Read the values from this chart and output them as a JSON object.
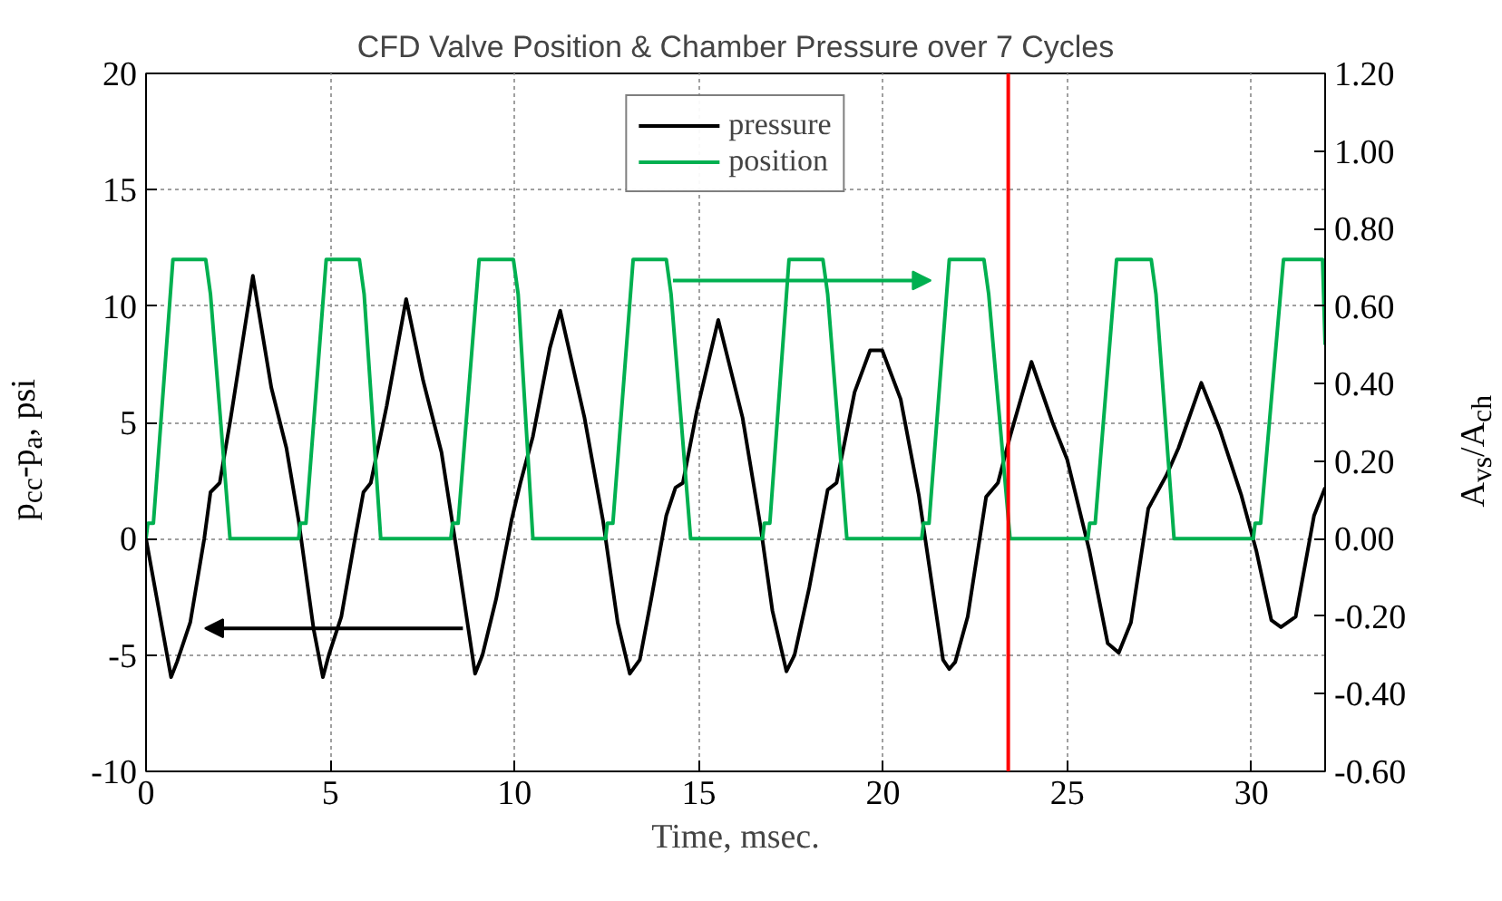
{
  "chart_data": {
    "type": "line",
    "title": "CFD Valve Position & Chamber Pressure over 7 Cycles",
    "xlabel": "Time, msec.",
    "ylabel": "p$_{cc}$-p$_{a}$, psi",
    "y2label": "A$_{vs}$/A$_{ch}$",
    "xlim": [
      0,
      32
    ],
    "xticks": [
      0,
      5,
      10,
      15,
      20,
      25,
      30
    ],
    "ylim": [
      -10,
      20
    ],
    "yticks": [
      -10,
      -5,
      0,
      5,
      10,
      15,
      20
    ],
    "y2lim": [
      -0.6,
      1.2
    ],
    "y2ticks": [
      {
        "value": -0.6,
        "label": "-0.60"
      },
      {
        "value": -0.4,
        "label": "-0.40"
      },
      {
        "value": -0.2,
        "label": "-0.20"
      },
      {
        "value": 0,
        "label": "0.00"
      },
      {
        "value": 0.2,
        "label": "0.20"
      },
      {
        "value": 0.4,
        "label": "0.40"
      },
      {
        "value": 0.6,
        "label": "0.60"
      },
      {
        "value": 0.8,
        "label": "0.80"
      },
      {
        "value": 1.0,
        "label": "1.00"
      },
      {
        "value": 1.2,
        "label": "1.20"
      }
    ],
    "grid": true,
    "legend": "top",
    "line_style": "solid",
    "ref_lines": [
      {
        "axis": "x",
        "value": 23.4,
        "color": "#ff0000"
      }
    ],
    "series": [
      {
        "name": "pressure",
        "color": "#000000",
        "x": [
          0,
          0.68,
          0.84,
          1.2,
          1.58,
          1.75,
          2.0,
          2.3,
          2.9,
          3.4,
          3.81,
          4.14,
          4.55,
          4.8,
          4.96,
          5.3,
          5.67,
          5.9,
          6.1,
          6.53,
          7.06,
          7.52,
          8.02,
          8.43,
          8.93,
          9.13,
          9.5,
          9.92,
          10.16,
          10.5,
          10.96,
          11.24,
          11.9,
          12.4,
          12.8,
          13.13,
          13.4,
          13.71,
          14.12,
          14.37,
          14.57,
          14.95,
          15.53,
          16.19,
          16.68,
          17.0,
          17.38,
          17.6,
          18.0,
          18.5,
          18.74,
          19.23,
          19.65,
          19.98,
          20.48,
          20.97,
          21.63,
          21.8,
          21.96,
          22.3,
          22.8,
          23.12,
          23.45,
          24.03,
          24.6,
          25.0,
          25.6,
          26.1,
          26.4,
          26.73,
          27.2,
          27.7,
          28.02,
          28.64,
          29.14,
          29.72,
          30.13,
          30.54,
          30.8,
          31.2,
          31.7,
          32.0
        ],
        "values": [
          0,
          -5.95,
          -5.3,
          -3.6,
          0,
          2.0,
          2.4,
          5.2,
          11.3,
          6.5,
          3.9,
          0.8,
          -3.9,
          -5.95,
          -5.0,
          -3.35,
          0,
          2.0,
          2.4,
          5.7,
          10.3,
          6.8,
          3.7,
          -0.5,
          -5.8,
          -5.0,
          -2.6,
          0.8,
          2.4,
          4.4,
          8.2,
          9.8,
          5.2,
          0.8,
          -3.6,
          -5.8,
          -5.2,
          -2.6,
          1.0,
          2.2,
          2.4,
          5.5,
          9.4,
          5.2,
          0.5,
          -3.1,
          -5.7,
          -5.0,
          -2.1,
          2.1,
          2.4,
          6.3,
          8.1,
          8.1,
          6.0,
          1.9,
          -5.2,
          -5.6,
          -5.3,
          -3.35,
          1.8,
          2.4,
          4.4,
          7.6,
          5.0,
          3.4,
          -0.5,
          -4.5,
          -4.9,
          -3.6,
          1.3,
          2.75,
          3.9,
          6.7,
          4.7,
          1.9,
          -0.5,
          -3.5,
          -3.8,
          -3.35,
          1.0,
          2.2
        ]
      },
      {
        "name": "position",
        "color": "#00b050",
        "axis": "y2",
        "x": [
          0,
          0.05,
          0.2,
          0.73,
          1.62,
          1.75,
          2.28,
          4.14,
          4.19,
          4.34,
          4.89,
          5.79,
          5.92,
          6.37,
          8.27,
          8.32,
          8.47,
          9.04,
          9.97,
          10.1,
          10.5,
          12.47,
          12.52,
          12.67,
          13.22,
          14.12,
          14.25,
          14.78,
          16.73,
          16.78,
          16.93,
          17.45,
          18.37,
          18.5,
          19.02,
          21.05,
          21.1,
          21.25,
          21.8,
          22.74,
          22.87,
          23.45,
          25.56,
          25.61,
          25.76,
          26.34,
          27.28,
          27.41,
          27.9,
          30.05,
          30.1,
          30.25,
          30.87,
          31.93,
          32.0
        ],
        "values": [
          0,
          0.04,
          0.04,
          0.72,
          0.72,
          0.63,
          0,
          0,
          0.04,
          0.04,
          0.72,
          0.72,
          0.63,
          0,
          0,
          0.04,
          0.04,
          0.72,
          0.72,
          0.63,
          0,
          0,
          0.04,
          0.04,
          0.72,
          0.72,
          0.63,
          0,
          0,
          0.04,
          0.04,
          0.72,
          0.72,
          0.63,
          0,
          0,
          0.04,
          0.04,
          0.72,
          0.72,
          0.63,
          0,
          0,
          0.04,
          0.04,
          0.72,
          0.72,
          0.63,
          0,
          0,
          0.04,
          0.04,
          0.72,
          0.72,
          0.5
        ]
      }
    ]
  }
}
